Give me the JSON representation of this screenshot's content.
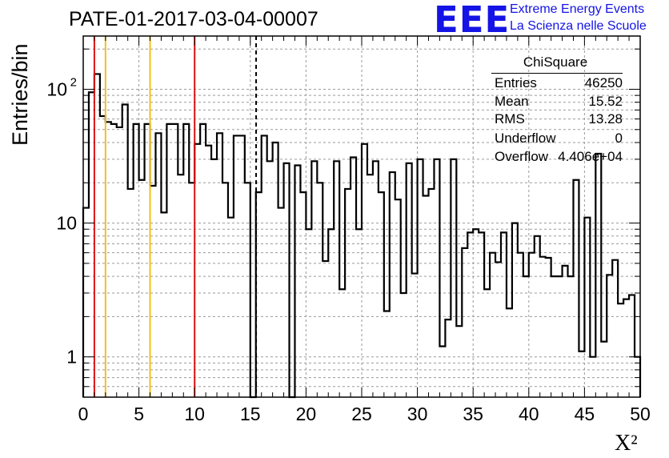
{
  "title": "PATE-01-2017-03-04-00007",
  "logo": {
    "mark": "EEE",
    "line1": "Extreme Energy Events",
    "line2": "La Scienza nelle Scuole",
    "color": "#1414e6"
  },
  "stats": {
    "title": "ChiSquare",
    "rows": [
      {
        "label": "Entries",
        "value": "46250"
      },
      {
        "label": "Mean",
        "value": "15.52"
      },
      {
        "label": "RMS",
        "value": "13.28"
      },
      {
        "label": "Underflow",
        "value": "0"
      },
      {
        "label": "Overflow",
        "value": "4.406e+04"
      }
    ]
  },
  "colors": {
    "red_line": "#dd1111",
    "yellow_line": "#f0c020",
    "histogram": "#000000",
    "grid": "#9a9a9a"
  },
  "chart_data": {
    "type": "histogram",
    "xlabel": "X²",
    "ylabel": "Entries/bin",
    "xlim": [
      0,
      50
    ],
    "ylim": [
      0.5,
      250
    ],
    "log_y": true,
    "grid": true,
    "bin_width": 0.5,
    "x_ticks": [
      "0",
      "5",
      "10",
      "15",
      "20",
      "25",
      "30",
      "35",
      "40",
      "45",
      "50"
    ],
    "y_ticks": [
      {
        "value": 1,
        "label": "1"
      },
      {
        "value": 10,
        "label": "10"
      },
      {
        "value": 100,
        "label": "10",
        "exponent": "2"
      }
    ],
    "values": [
      13,
      95,
      130,
      63,
      57,
      55,
      52,
      77,
      18,
      55,
      21,
      55,
      19,
      47,
      12,
      55,
      55,
      23,
      55,
      20,
      39,
      55,
      38,
      30,
      47,
      20,
      11,
      45,
      45,
      20,
      0.5,
      17,
      45,
      29,
      40,
      13,
      28,
      0,
      27,
      17,
      9,
      29,
      20,
      5.2,
      9,
      29,
      3.2,
      18,
      31,
      9,
      39,
      23,
      29,
      17,
      2.2,
      24,
      15,
      3,
      28,
      4.2,
      30,
      16,
      18,
      30,
      1.2,
      1.9,
      30,
      1.7,
      6.5,
      8.5,
      9,
      8.5,
      3.2,
      6,
      5.1,
      8.5,
      2.3,
      10,
      6,
      4,
      6,
      8,
      5.6,
      5.5,
      4,
      4,
      4.8,
      4,
      21,
      1.1,
      11,
      1,
      33,
      1.3,
      4.1,
      5.3,
      2.5,
      2.7,
      2.9,
      1
    ],
    "vertical_lines": [
      {
        "x": 1,
        "style": "solid",
        "color": "red"
      },
      {
        "x": 2,
        "style": "solid",
        "color": "yellow"
      },
      {
        "x": 6,
        "style": "solid",
        "color": "yellow"
      },
      {
        "x": 10,
        "style": "solid",
        "color": "red"
      },
      {
        "x": 15.52,
        "style": "dashed",
        "color": "black"
      }
    ]
  }
}
